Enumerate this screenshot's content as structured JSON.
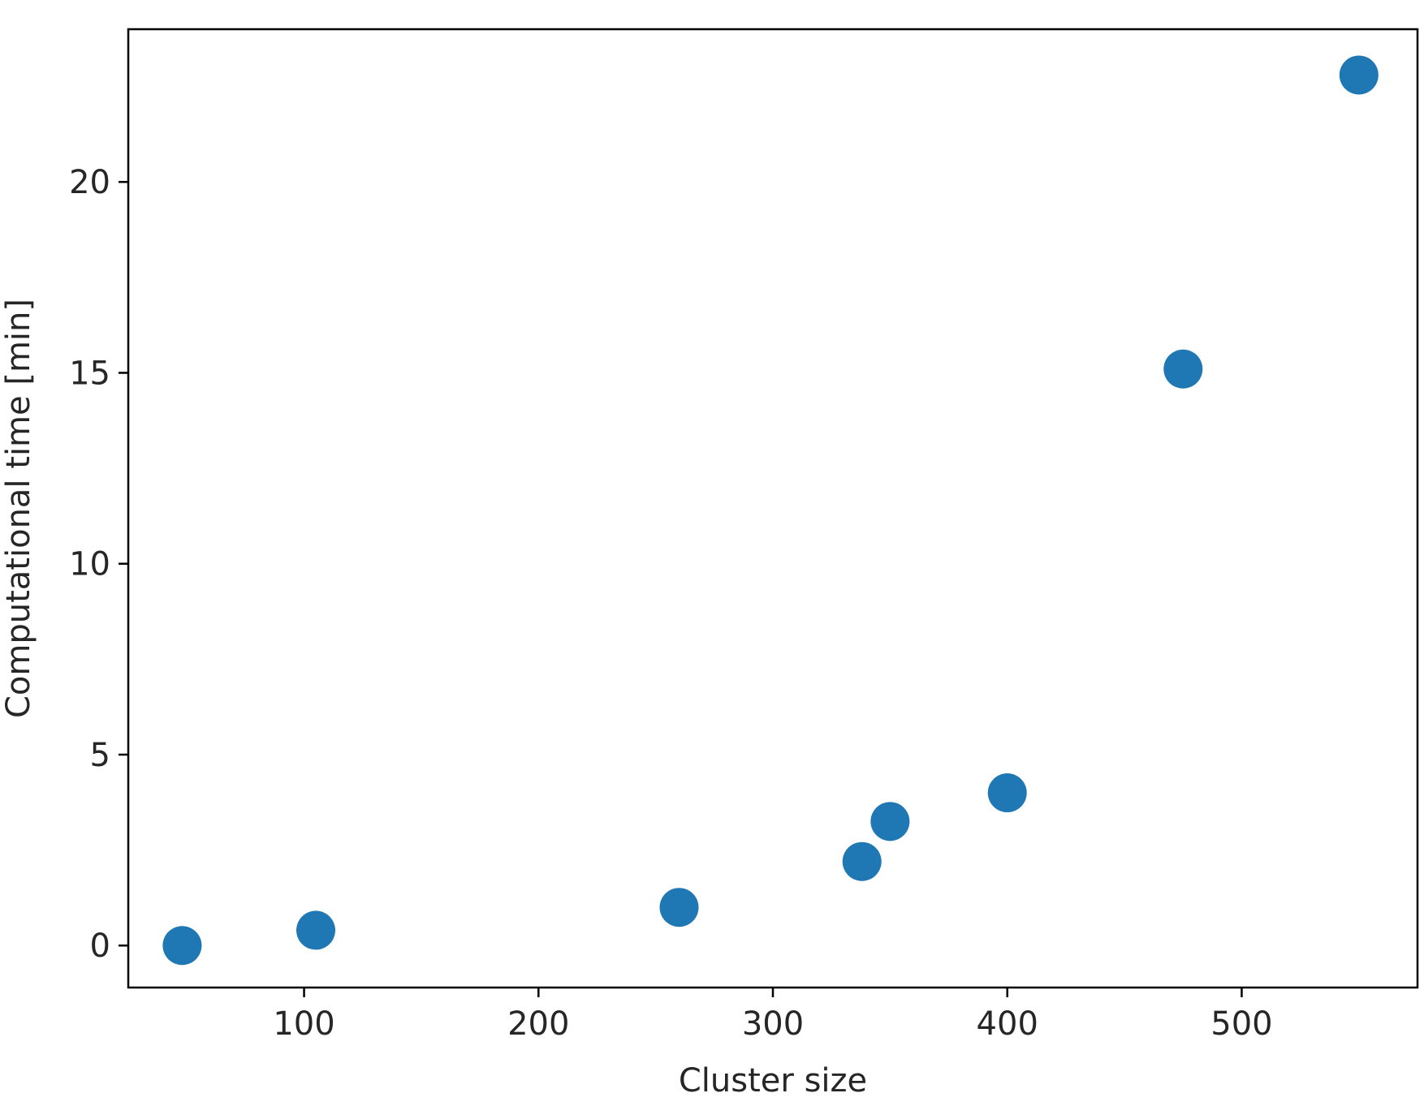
{
  "chart_data": {
    "type": "scatter",
    "title": "",
    "xlabel": "Cluster size",
    "ylabel": "Computational time [min]",
    "xlim": [
      25,
      575
    ],
    "ylim": [
      -1.1,
      24
    ],
    "xticks": [
      100,
      200,
      300,
      400,
      500
    ],
    "yticks": [
      0,
      5,
      10,
      15,
      20
    ],
    "grid": false,
    "legend": "none",
    "marker_color": "#1f77b4",
    "points": [
      {
        "x": 48,
        "y": 0.0
      },
      {
        "x": 105,
        "y": 0.4
      },
      {
        "x": 260,
        "y": 1.0
      },
      {
        "x": 338,
        "y": 2.2
      },
      {
        "x": 350,
        "y": 3.25
      },
      {
        "x": 400,
        "y": 4.0
      },
      {
        "x": 475,
        "y": 15.1
      },
      {
        "x": 550,
        "y": 22.8
      }
    ]
  }
}
